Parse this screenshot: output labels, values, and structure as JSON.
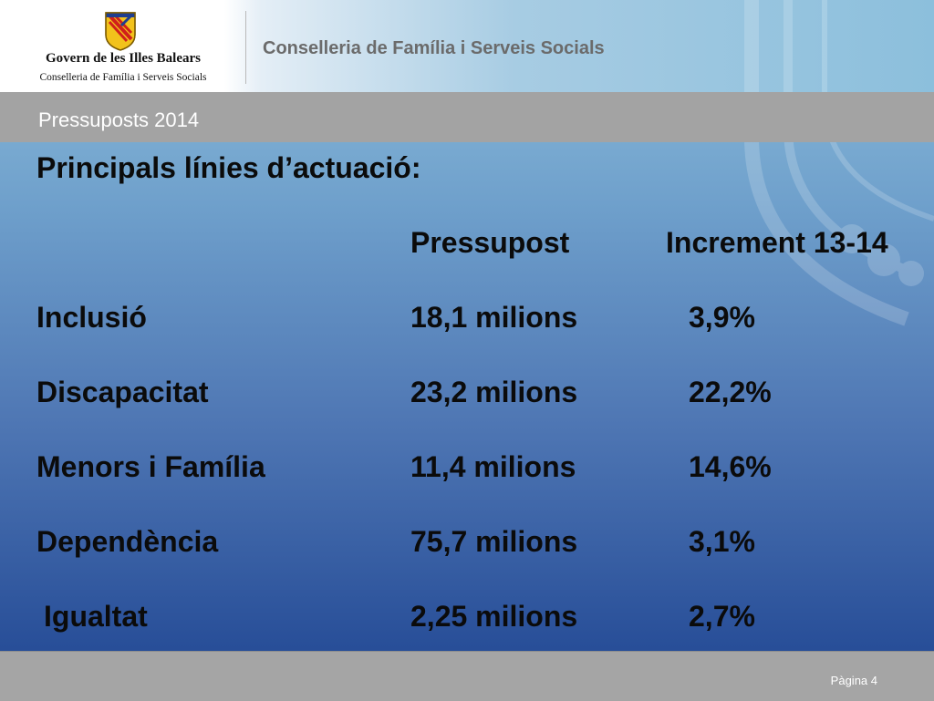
{
  "header": {
    "org_name": "Govern de les Illes Balears",
    "org_subtitle": "Conselleria de Família i Serveis Socials",
    "department": "Conselleria de Família i Serveis Socials"
  },
  "subtitle_bar": {
    "text": "Pressuposts 2014"
  },
  "slide": {
    "heading": "Principals línies d’actuació:",
    "columns": {
      "budget": "Pressupost",
      "increment": "Increment 13-14"
    },
    "rows": [
      {
        "label": "Inclusió",
        "budget": "18,1 milions",
        "increment": "3,9%"
      },
      {
        "label": "Discapacitat",
        "budget": "23,2 milions",
        "increment": "22,2%"
      },
      {
        "label": "Menors i Família",
        "budget": "11,4 milions",
        "increment": "14,6%"
      },
      {
        "label": "Dependència",
        "budget": "75,7 milions",
        "increment": "3,1%"
      },
      {
        "label": "Igualtat",
        "budget": "2,25 milions",
        "increment": "2,7%"
      }
    ]
  },
  "footer": {
    "page": "Pàgina 4"
  },
  "colors": {
    "text": "#0b0b0b",
    "bar_gray": "#a3a3a3",
    "gradient_top": "#8fc0dc",
    "gradient_bottom": "#1f4592"
  },
  "icons": {
    "logo": "coat-of-arms-icon"
  }
}
